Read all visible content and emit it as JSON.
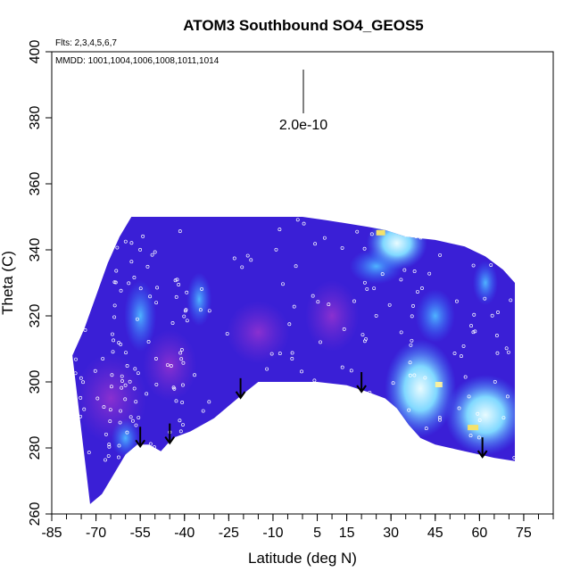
{
  "chart_data": {
    "type": "heatmap",
    "title": "ATOM3 Southbound SO4_GEOS5",
    "flights_label": "Flts: 2,3,4,5,6,7",
    "dates_label": "MMDD: 1001,1004,1006,1008,1011,1014",
    "xlabel": "Latitude (deg N)",
    "ylabel": "Theta (C)",
    "xlim": [
      -85,
      85
    ],
    "ylim": [
      260,
      400
    ],
    "x_ticks": [
      -85,
      -70,
      -55,
      -40,
      -25,
      -10,
      5,
      15,
      30,
      45,
      60,
      75
    ],
    "y_ticks": [
      260,
      280,
      300,
      320,
      340,
      360,
      380,
      400
    ],
    "scale_bar_label": "2.0e-10",
    "colors": {
      "background_field": "#3a1fd6",
      "purple": "#6a2bd0",
      "light_blue": "#3aa0ff",
      "cyan": "#9fe8ff",
      "yellow": "#f4e26a",
      "arrow": "#000000"
    },
    "tropopause_arrows_lat": [
      -55,
      -45,
      -21,
      20,
      61
    ],
    "surface_profile": [
      [
        -72,
        263
      ],
      [
        -68,
        266
      ],
      [
        -64,
        272
      ],
      [
        -60,
        278
      ],
      [
        -56,
        281
      ],
      [
        -52,
        281
      ],
      [
        -48,
        279
      ],
      [
        -44,
        283
      ],
      [
        -38,
        285
      ],
      [
        -30,
        289
      ],
      [
        -22,
        295
      ],
      [
        -15,
        300
      ],
      [
        -5,
        300
      ],
      [
        5,
        300
      ],
      [
        15,
        299
      ],
      [
        22,
        297
      ],
      [
        28,
        295
      ],
      [
        32,
        292
      ],
      [
        36,
        287
      ],
      [
        40,
        283
      ],
      [
        45,
        281
      ],
      [
        50,
        280
      ],
      [
        55,
        279
      ],
      [
        60,
        278
      ],
      [
        65,
        277
      ],
      [
        72,
        276
      ]
    ],
    "top_profile": [
      [
        -78,
        308
      ],
      [
        -74,
        316
      ],
      [
        -70,
        326
      ],
      [
        -66,
        336
      ],
      [
        -62,
        344
      ],
      [
        -58,
        350
      ],
      [
        -50,
        350
      ],
      [
        -40,
        350
      ],
      [
        -25,
        350
      ],
      [
        -10,
        350
      ],
      [
        0,
        350
      ],
      [
        8,
        349
      ],
      [
        15,
        348
      ],
      [
        22,
        347
      ],
      [
        28,
        346
      ],
      [
        35,
        344
      ],
      [
        45,
        343
      ],
      [
        55,
        341
      ],
      [
        62,
        338
      ],
      [
        68,
        334
      ],
      [
        72,
        330
      ]
    ]
  }
}
